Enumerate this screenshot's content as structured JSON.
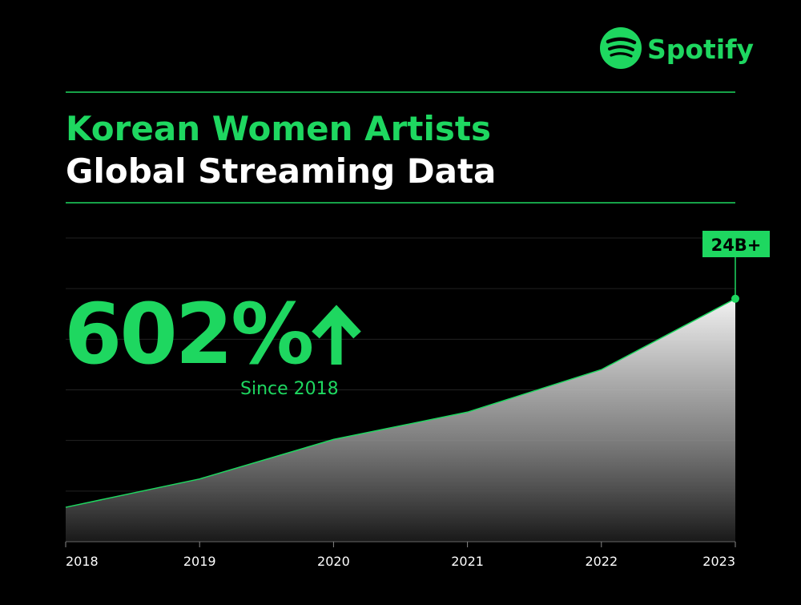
{
  "brand": "Spotify",
  "chart_data": {
    "type": "area",
    "title": "Korean Women Artists",
    "subtitle": "Global Streaming Data",
    "annotation": "602%",
    "annotation_note": "Since 2018",
    "categories": [
      "2018",
      "2019",
      "2020",
      "2021",
      "2022",
      "2023"
    ],
    "values": [
      3.4,
      6.2,
      10.1,
      12.8,
      17,
      24
    ],
    "value_labels": [
      null,
      null,
      null,
      null,
      null,
      "24B+"
    ],
    "ylim": [
      0,
      30
    ],
    "yticks": [
      5,
      10,
      15,
      20,
      25,
      30
    ],
    "grid": true,
    "color": "#1ed760",
    "fill_color": "#ffffff"
  }
}
